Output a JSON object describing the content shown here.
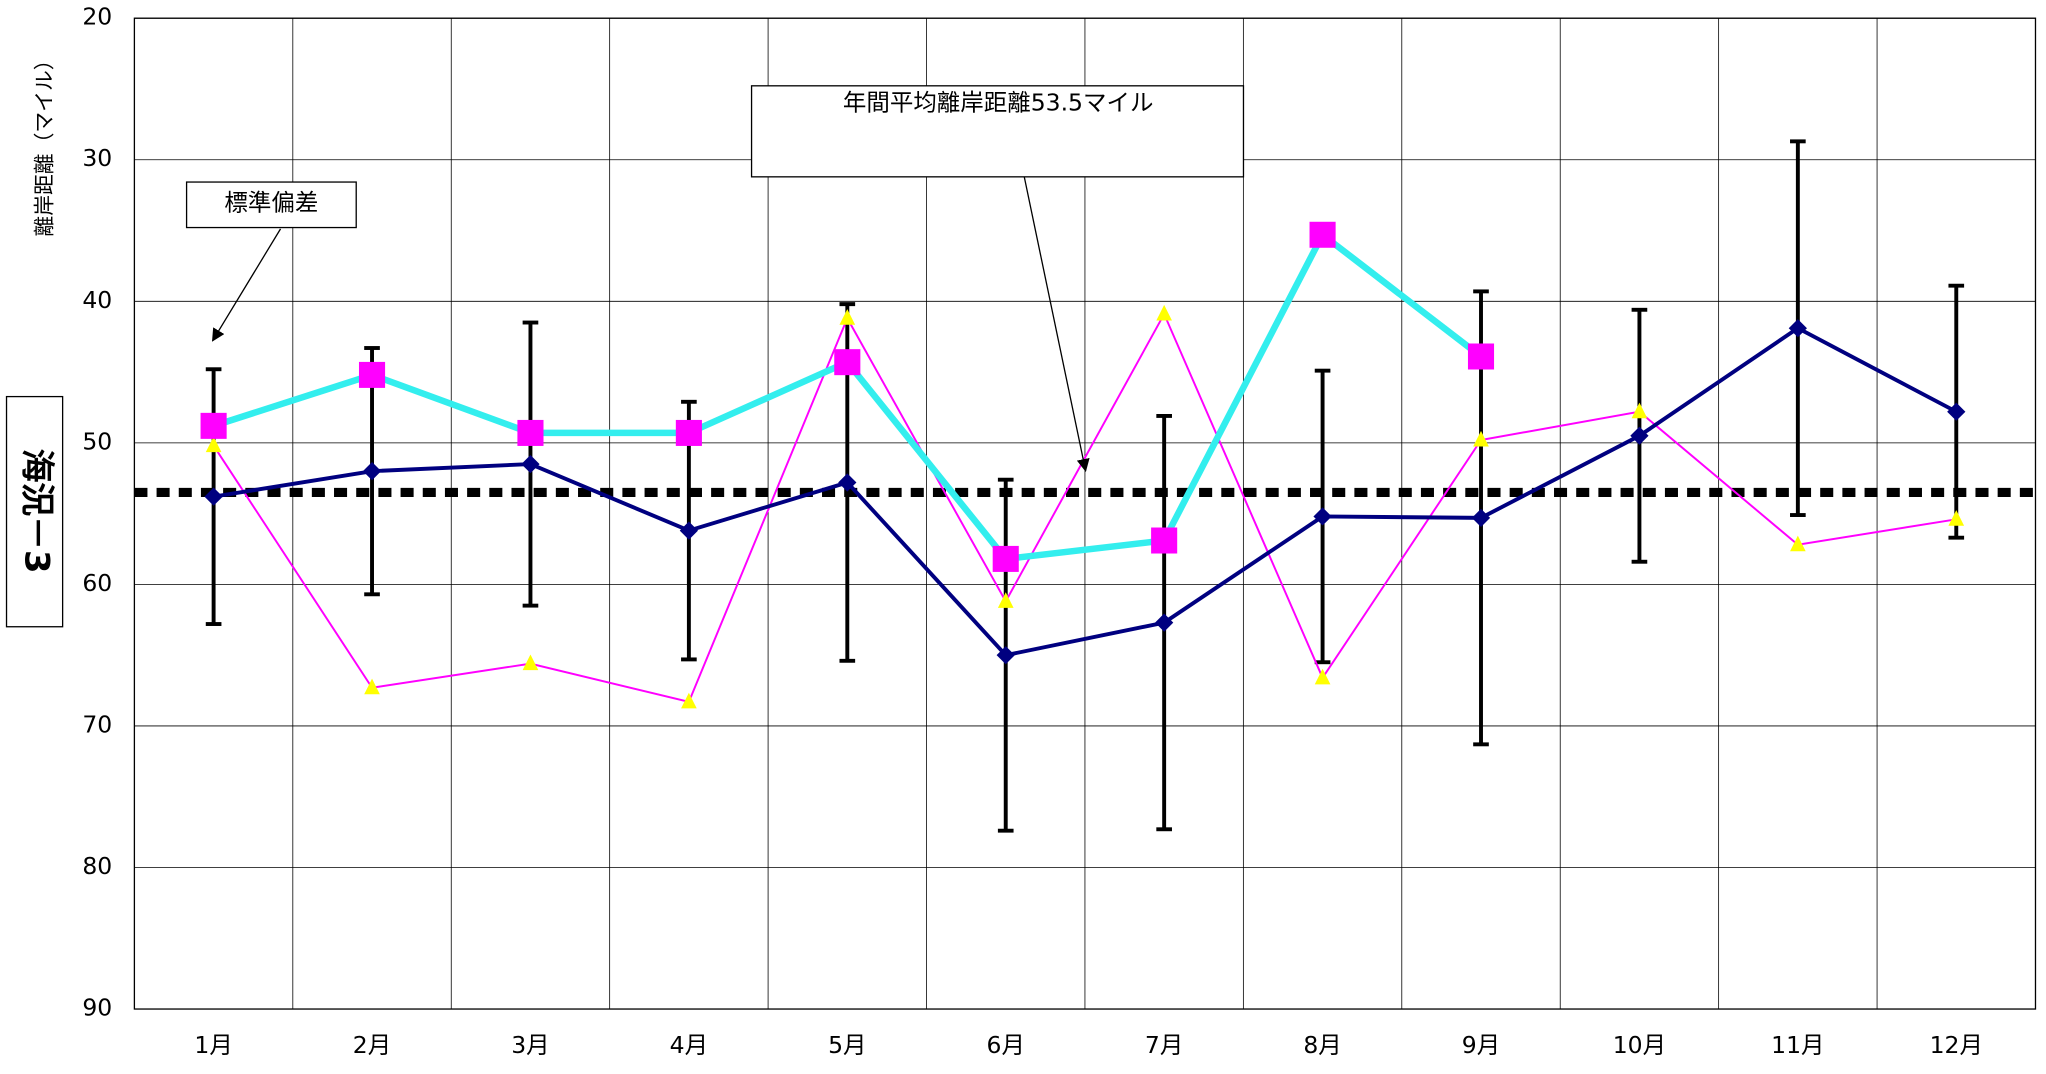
{
  "chart_data": {
    "type": "line",
    "ylabel": "離岸距離（マイル）",
    "side_label": "海況－3",
    "categories": [
      "1月",
      "2月",
      "3月",
      "4月",
      "5月",
      "6月",
      "7月",
      "8月",
      "9月",
      "10月",
      "11月",
      "12月"
    ],
    "series": [
      {
        "color": "#000080",
        "marker": "diamond",
        "values": [
          53.8,
          52.0,
          51.5,
          56.2,
          52.8,
          65.0,
          62.7,
          55.2,
          55.3,
          49.5,
          41.9,
          47.8
        ],
        "errors": [
          9.0,
          8.7,
          10.0,
          9.1,
          12.6,
          12.4,
          14.6,
          10.3,
          16.0,
          8.9,
          13.2,
          8.9
        ]
      },
      {
        "color": "#33eeee",
        "marker_color": "#ff00ff",
        "marker": "square",
        "values": [
          48.8,
          45.2,
          49.3,
          49.3,
          44.3,
          58.2,
          56.9,
          35.3,
          43.9,
          null,
          null,
          null
        ]
      },
      {
        "color": "#ff00ff",
        "marker_color": "#ffff00",
        "marker": "triangle",
        "values": [
          50.2,
          67.3,
          65.6,
          68.3,
          41.2,
          61.2,
          40.9,
          66.6,
          49.8,
          47.8,
          57.2,
          55.4
        ]
      }
    ],
    "reference_line": 53.5,
    "annotations": [
      "年間平均離岸距離53.5マイル",
      "標準偏差"
    ],
    "ylim": [
      20,
      90
    ],
    "yticks": [
      20,
      30,
      40,
      50,
      60,
      70,
      80,
      90
    ],
    "y_inverted": true,
    "grid": true
  }
}
